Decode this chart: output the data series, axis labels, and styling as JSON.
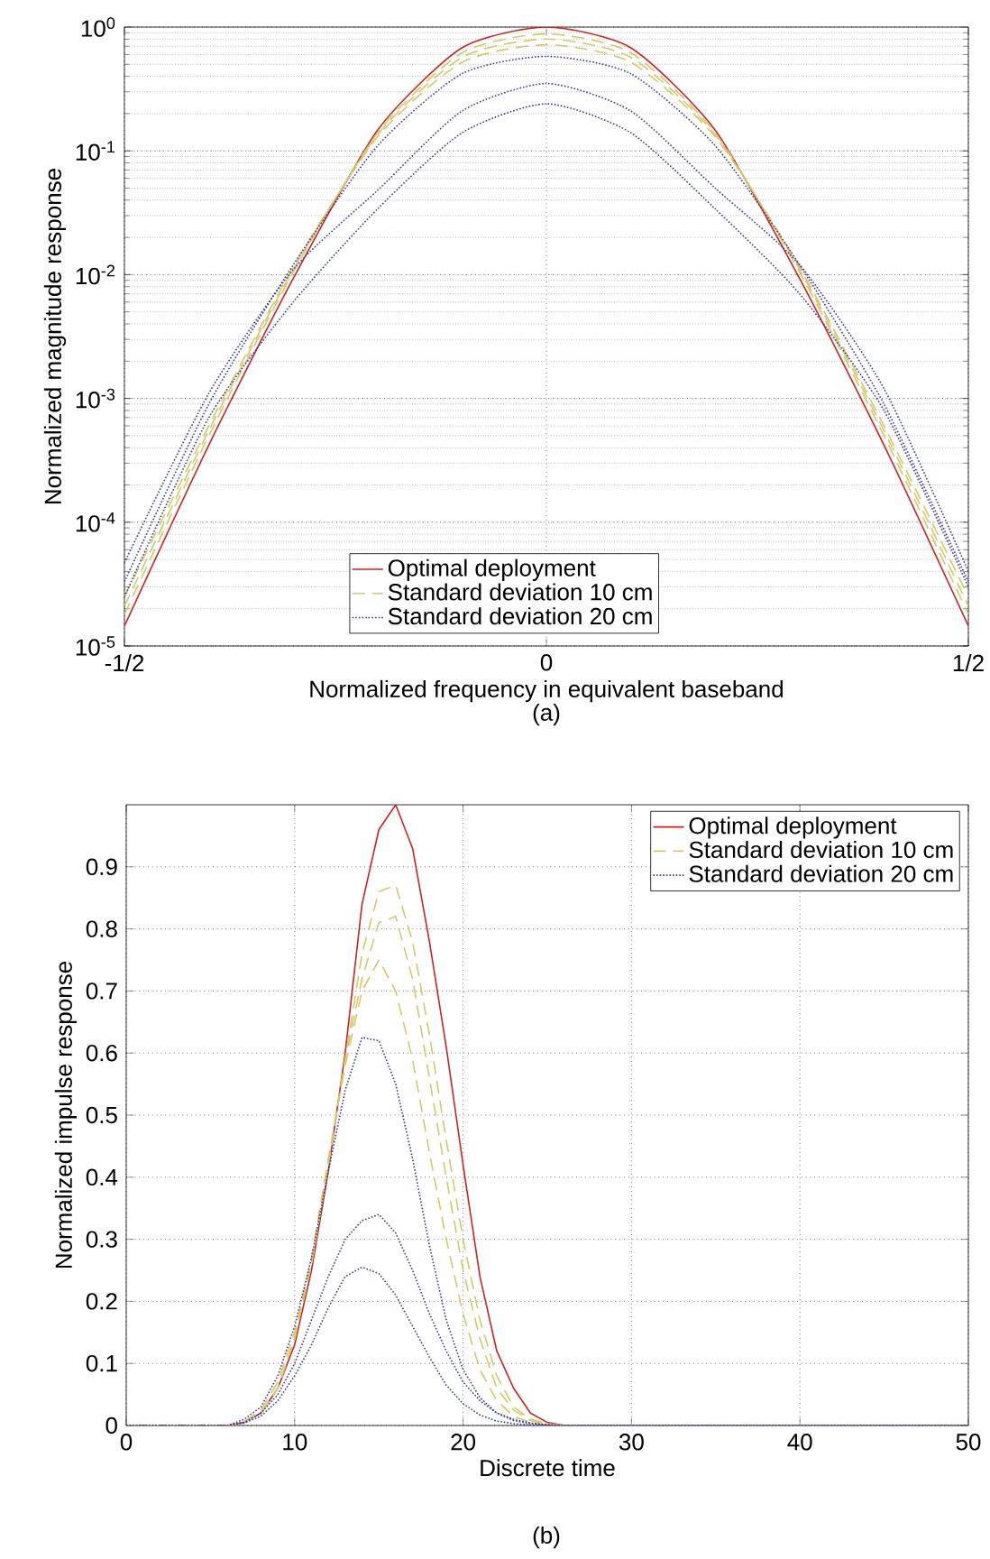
{
  "chart_data": [
    {
      "type": "line",
      "xlabel": "Normalized frequency in equivalent baseband",
      "ylabel": "Normalized magnitude response",
      "annotations": [
        "(a)"
      ],
      "log": "y",
      "grid": true,
      "legend": "bottom",
      "x": [
        -0.5,
        -0.4,
        -0.3,
        -0.2,
        -0.1,
        0,
        0.1,
        0.2,
        0.3,
        0.4,
        0.5
      ],
      "xlim": [
        -0.5,
        0.5
      ],
      "ylim": [
        1e-05,
        1
      ],
      "xticks": [
        {
          "value": -0.5,
          "label": "-1/2"
        },
        0,
        {
          "value": 0.5,
          "label": "1/2"
        }
      ],
      "yticks": [
        {
          "value": 1e-05,
          "label": "10$^{-5}$"
        },
        {
          "value": 0.0001,
          "label": "10$^{-4}$"
        },
        {
          "value": 0.001,
          "label": "10$^{-3}$"
        },
        {
          "value": 0.01,
          "label": "10$^{-2}$"
        },
        {
          "value": 0.1,
          "label": "10$^{-1}$"
        },
        {
          "value": 1,
          "label": "10$^{0}$"
        }
      ],
      "series": [
        {
          "name": "Optimal deployment",
          "color": "#cc2222",
          "line_style": "solid",
          "values": [
            1.45e-05,
            0.00042,
            0.0093,
            0.147,
            0.68,
            1.0,
            0.68,
            0.147,
            0.0093,
            0.00042,
            1.45e-05
          ]
        },
        {
          "name": "Standard deviation 10 cm",
          "color": "#d4c86a",
          "line_style": "dashed",
          "values": [
            1.8e-05,
            0.0005,
            0.0105,
            0.14,
            0.62,
            0.88,
            0.62,
            0.14,
            0.0105,
            0.0005,
            1.8e-05
          ]
        },
        {
          "color": "#d4c86a",
          "line_style": "dashed",
          "values": [
            2.1e-05,
            0.00055,
            0.011,
            0.135,
            0.57,
            0.8,
            0.57,
            0.135,
            0.011,
            0.00055,
            2.1e-05
          ]
        },
        {
          "color": "#d4c86a",
          "line_style": "dashed",
          "values": [
            2.5e-05,
            0.0006,
            0.0115,
            0.13,
            0.52,
            0.72,
            0.52,
            0.13,
            0.0115,
            0.0006,
            2.5e-05
          ]
        },
        {
          "name": "Standard deviation 20 cm",
          "color": "#3a3a9a",
          "line_style": "dotted",
          "values": [
            3.3e-05,
            0.0009,
            0.012,
            0.11,
            0.42,
            0.58,
            0.42,
            0.11,
            0.012,
            0.0009,
            3.3e-05
          ]
        },
        {
          "color": "#3a3a9a",
          "line_style": "dotted",
          "values": [
            4.7e-05,
            0.0011,
            0.011,
            0.048,
            0.21,
            0.35,
            0.21,
            0.05,
            0.012,
            0.0012,
            4e-05
          ]
        },
        {
          "color": "#3a3a9a",
          "line_style": "dotted",
          "values": [
            2.5e-05,
            0.0007,
            0.006,
            0.034,
            0.14,
            0.24,
            0.14,
            0.034,
            0.007,
            0.0008,
            3e-05
          ]
        }
      ]
    },
    {
      "type": "line",
      "xlabel": "Discrete time",
      "ylabel": "Normalized impulse response",
      "annotations": [
        "(b)"
      ],
      "grid": true,
      "legend": "top right",
      "x": [
        0,
        6,
        7,
        8,
        9,
        10,
        11,
        12,
        13,
        14,
        15,
        16,
        17,
        18,
        19,
        20,
        21,
        22,
        23,
        24,
        25,
        26,
        27,
        50
      ],
      "xlim": [
        0,
        50
      ],
      "ylim": [
        0,
        1
      ],
      "xticks": [
        0,
        10,
        20,
        30,
        40,
        50
      ],
      "yticks": [
        0,
        0.1,
        0.2,
        0.3,
        0.4,
        0.5,
        0.6,
        0.7,
        0.8,
        0.9
      ],
      "series": [
        {
          "name": "Optimal deployment",
          "color": "#cc2222",
          "line_style": "solid",
          "values": [
            0,
            0,
            0.005,
            0.02,
            0.06,
            0.13,
            0.25,
            0.41,
            0.6,
            0.84,
            0.96,
            1.0,
            0.93,
            0.78,
            0.61,
            0.42,
            0.24,
            0.12,
            0.06,
            0.02,
            0.005,
            0,
            0,
            0
          ]
        },
        {
          "name": "Standard deviation 10 cm",
          "color": "#d4c86a",
          "line_style": "dashed",
          "values": [
            0,
            0,
            0.005,
            0.02,
            0.06,
            0.14,
            0.26,
            0.42,
            0.59,
            0.76,
            0.86,
            0.87,
            0.78,
            0.63,
            0.46,
            0.3,
            0.17,
            0.08,
            0.03,
            0.01,
            0.003,
            0,
            0,
            0
          ]
        },
        {
          "color": "#d4c86a",
          "line_style": "dashed",
          "values": [
            0,
            0,
            0.005,
            0.02,
            0.06,
            0.14,
            0.26,
            0.42,
            0.59,
            0.72,
            0.81,
            0.82,
            0.72,
            0.56,
            0.4,
            0.25,
            0.14,
            0.06,
            0.025,
            0.008,
            0.002,
            0,
            0,
            0
          ]
        },
        {
          "color": "#d4c86a",
          "line_style": "dashed",
          "values": [
            0,
            0,
            0.006,
            0.025,
            0.07,
            0.15,
            0.27,
            0.43,
            0.58,
            0.7,
            0.75,
            0.7,
            0.59,
            0.44,
            0.3,
            0.18,
            0.09,
            0.04,
            0.015,
            0.005,
            0.001,
            0,
            0,
            0
          ]
        },
        {
          "name": "Standard deviation 20 cm",
          "color": "#3a3a9a",
          "line_style": "dotted",
          "values": [
            0,
            0,
            0.01,
            0.03,
            0.08,
            0.16,
            0.27,
            0.41,
            0.54,
            0.625,
            0.62,
            0.55,
            0.43,
            0.29,
            0.17,
            0.09,
            0.045,
            0.02,
            0.008,
            0.003,
            0.001,
            0,
            0,
            0
          ]
        },
        {
          "color": "#3a3a9a",
          "line_style": "dotted",
          "values": [
            0,
            0,
            0.005,
            0.02,
            0.05,
            0.1,
            0.17,
            0.24,
            0.3,
            0.33,
            0.34,
            0.31,
            0.25,
            0.18,
            0.12,
            0.07,
            0.04,
            0.02,
            0.01,
            0.004,
            0.001,
            0,
            0,
            0
          ]
        },
        {
          "color": "#3a3a9a",
          "line_style": "dotted",
          "values": [
            0,
            0,
            0.004,
            0.015,
            0.04,
            0.08,
            0.13,
            0.19,
            0.24,
            0.255,
            0.245,
            0.21,
            0.16,
            0.11,
            0.065,
            0.035,
            0.017,
            0.007,
            0.003,
            0.001,
            0,
            0,
            0,
            0
          ]
        }
      ]
    }
  ]
}
